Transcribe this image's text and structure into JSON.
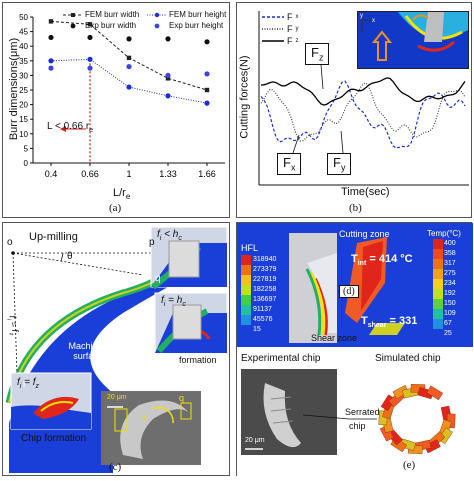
{
  "panel_a": {
    "caption": "(a)",
    "annotation": "L < 0.66 r",
    "annotation_sub": "e",
    "chart_data": {
      "type": "line",
      "xlabel": "L/r",
      "xlabel_sub": "e",
      "ylabel": "Burr dimensions(μm)",
      "categories": [
        "0.4",
        "0.66",
        "1",
        "1.33",
        "1.66"
      ],
      "ylim": [
        0,
        50
      ],
      "yticks": [
        "0",
        "5",
        "10",
        "15",
        "20",
        "25",
        "30",
        "35",
        "40",
        "45",
        "50"
      ],
      "series": [
        {
          "name": "FEM burr width",
          "style": "dash-square",
          "color": "#222222",
          "values": [
            48.5,
            47.5,
            36,
            29,
            25
          ]
        },
        {
          "name": "Exp burr width",
          "style": "marker-only",
          "color": "#111111",
          "values": [
            43,
            43,
            42.5,
            42.5,
            41.5
          ]
        },
        {
          "name": "FEM burr height",
          "style": "dot-circle",
          "color": "#1a2fd0",
          "values": [
            35,
            35.5,
            26,
            23,
            20.5
          ]
        },
        {
          "name": "Exp burr height",
          "style": "marker-only",
          "color": "#3a46e0",
          "values": [
            32.5,
            32.5,
            33,
            30,
            30.5
          ]
        }
      ]
    }
  },
  "panel_b": {
    "caption": "(b)",
    "xlabel": "Time(sec)",
    "ylabel": "Cutting forces(N)",
    "legend": [
      {
        "name": "F",
        "sub": "x",
        "color": "#1a2fd0",
        "style": "dash"
      },
      {
        "name": "F",
        "sub": "y",
        "color": "#333333",
        "style": "dot"
      },
      {
        "name": "F",
        "sub": "z",
        "color": "#000000",
        "style": "solid"
      }
    ],
    "callouts": [
      {
        "name": "F",
        "sub": "z"
      },
      {
        "name": "F",
        "sub": "x"
      },
      {
        "name": "F",
        "sub": "y"
      }
    ],
    "inset_axes": [
      "y",
      "x"
    ]
  },
  "panel_c": {
    "caption": "(c)",
    "title": "Up-milling",
    "points": [
      "o",
      "p",
      "q",
      "r"
    ],
    "theta": "θ",
    "eq_hc": "f = h",
    "eq_hc_sub_f": "i",
    "eq_hc_sub_h": "c",
    "eq_fz": "f = f",
    "eq_fz_sub_left": "i",
    "eq_fz_sub_right": "z",
    "machined_surface": "Machined surface",
    "inset1": "f < h",
    "inset2": "f = h",
    "chip_formation_side": "formation",
    "chip_formation_bottom": "Chip formation",
    "inset3": "f = f",
    "scale": "20 μm",
    "sem_labels": [
      "r",
      "q"
    ]
  },
  "panel_d": {
    "caption": "(d)",
    "title": "Cutting zone",
    "hfl_label": "HFL",
    "hfl_values": [
      "318940",
      "273379",
      "227819",
      "182258",
      "136697",
      "91137",
      "45576",
      "15"
    ],
    "temp_label": "Temp(°C)",
    "temp_values": [
      "400",
      "358",
      "317",
      "275",
      "234",
      "192",
      "150",
      "109",
      "67",
      "25"
    ],
    "t_int": "T",
    "t_int_sub": "int",
    "t_int_value": "= 414 °C",
    "t_shear": "T",
    "t_shear_sub": "shear",
    "t_shear_value": "= 331",
    "shear_zone": "Shear zone"
  },
  "panel_e": {
    "caption": "(e)",
    "experimental": "Experimental chip",
    "simulated": "Simulated chip",
    "serrated": "Serrated",
    "chip": "chip",
    "scale": "20 μm"
  },
  "colors": {
    "fem_blue": "#1a2fd0",
    "contour_blue": "#1a3fd8",
    "hot_red": "#e0261a",
    "callout_yellow": "#f0e000"
  }
}
